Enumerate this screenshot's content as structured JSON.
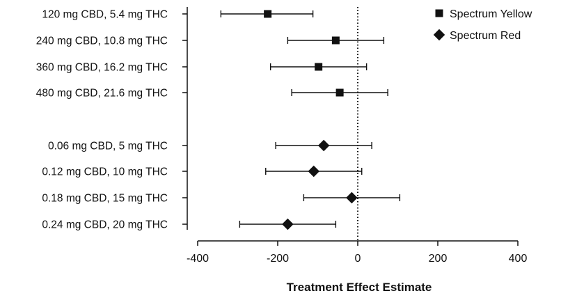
{
  "chart_data": {
    "type": "forest",
    "xlabel": "Treatment Effect Estimate",
    "xlim": [
      -400,
      400
    ],
    "xticks": [
      -400,
      -200,
      0,
      200,
      400
    ],
    "reference_line": {
      "x": 0,
      "style": "dotted"
    },
    "legend": {
      "position": "top-right",
      "entries": [
        {
          "name": "Spectrum Yellow",
          "marker": "square"
        },
        {
          "name": "Spectrum Red",
          "marker": "diamond"
        }
      ]
    },
    "series": [
      {
        "name": "Spectrum Yellow",
        "marker": "square",
        "points": [
          {
            "label": "120 mg CBD, 5.4 mg THC",
            "estimate": -225,
            "lower": -342,
            "upper": -112
          },
          {
            "label": "240 mg CBD, 10.8 mg THC",
            "estimate": -55,
            "lower": -175,
            "upper": 65
          },
          {
            "label": "360 mg CBD, 16.2 mg THC",
            "estimate": -98,
            "lower": -218,
            "upper": 22
          },
          {
            "label": "480 mg CBD, 21.6 mg THC",
            "estimate": -45,
            "lower": -165,
            "upper": 75
          }
        ]
      },
      {
        "name": "Spectrum Red",
        "marker": "diamond",
        "points": [
          {
            "label": "0.06 mg CBD, 5 mg THC",
            "estimate": -85,
            "lower": -205,
            "upper": 35
          },
          {
            "label": "0.12 mg CBD, 10 mg THC",
            "estimate": -110,
            "lower": -230,
            "upper": 10
          },
          {
            "label": "0.18 mg CBD, 15 mg THC",
            "estimate": -15,
            "lower": -135,
            "upper": 105
          },
          {
            "label": "0.24 mg CBD, 20 mg THC",
            "estimate": -175,
            "lower": -295,
            "upper": -55
          }
        ]
      }
    ]
  }
}
